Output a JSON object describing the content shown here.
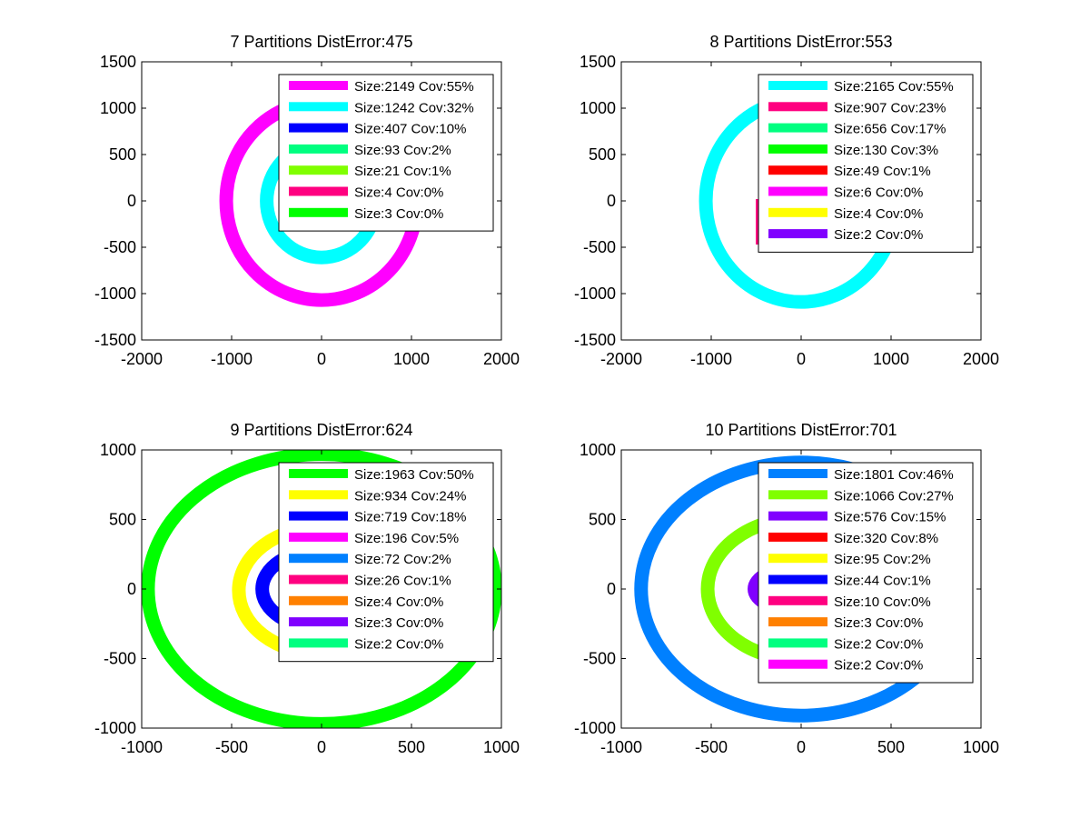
{
  "chart_data": [
    {
      "type": "scatter",
      "title": "7 Partitions DistError:475",
      "xlim": [
        -2000,
        2000
      ],
      "ylim": [
        -1500,
        1500
      ],
      "xticks": [
        "-2000",
        "-1000",
        "0",
        "1000",
        "2000"
      ],
      "yticks": [
        "1500",
        "1000",
        "500",
        "0",
        "-500",
        "-1000",
        "-1500"
      ],
      "grid": false,
      "legend_position": "top-right",
      "series": [
        {
          "name": "Size:2149 Cov:55%",
          "color": "#ff00ff",
          "shape": "ellipse",
          "center": [
            0,
            0
          ],
          "radii": [
            1060,
            1070
          ]
        },
        {
          "name": "Size:1242 Cov:32%",
          "color": "#00ffff",
          "shape": "ellipse",
          "center": [
            0,
            0
          ],
          "radii": [
            610,
            610
          ]
        },
        {
          "name": "Size:407 Cov:10%",
          "color": "#0000ff",
          "shape": "none"
        },
        {
          "name": "Size:93 Cov:2%",
          "color": "#00ff80",
          "shape": "none"
        },
        {
          "name": "Size:21 Cov:1%",
          "color": "#80ff00",
          "shape": "none"
        },
        {
          "name": "Size:4 Cov:0%",
          "color": "#ff0080",
          "shape": "none"
        },
        {
          "name": "Size:3 Cov:0%",
          "color": "#00ff00",
          "shape": "none"
        }
      ]
    },
    {
      "type": "scatter",
      "title": "8 Partitions DistError:553",
      "xlim": [
        -2000,
        2000
      ],
      "ylim": [
        -1500,
        1500
      ],
      "xticks": [
        "-2000",
        "-1000",
        "0",
        "1000",
        "2000"
      ],
      "yticks": [
        "1500",
        "1000",
        "500",
        "0",
        "-500",
        "-1000",
        "-1500"
      ],
      "grid": false,
      "legend_position": "top-right",
      "series": [
        {
          "name": "Size:2165 Cov:55%",
          "color": "#00ffff",
          "shape": "ellipse",
          "center": [
            0,
            0
          ],
          "radii": [
            1060,
            1090
          ]
        },
        {
          "name": "Size:907 Cov:23%",
          "color": "#ff0080",
          "shape": "small",
          "center": [
            0,
            0
          ],
          "radii": [
            50,
            500
          ]
        },
        {
          "name": "Size:656 Cov:17%",
          "color": "#00ff80",
          "shape": "none"
        },
        {
          "name": "Size:130 Cov:3%",
          "color": "#00ff00",
          "shape": "none"
        },
        {
          "name": "Size:49 Cov:1%",
          "color": "#ff0000",
          "shape": "none"
        },
        {
          "name": "Size:6 Cov:0%",
          "color": "#ff00ff",
          "shape": "none"
        },
        {
          "name": "Size:4 Cov:0%",
          "color": "#ffff00",
          "shape": "none"
        },
        {
          "name": "Size:2 Cov:0%",
          "color": "#8000ff",
          "shape": "none"
        }
      ]
    },
    {
      "type": "scatter",
      "title": "9 Partitions DistError:624",
      "xlim": [
        -1000,
        1000
      ],
      "ylim": [
        -1000,
        1000
      ],
      "xticks": [
        "-1000",
        "-500",
        "0",
        "500",
        "1000"
      ],
      "yticks": [
        "1000",
        "500",
        "0",
        "-500",
        "-1000"
      ],
      "grid": false,
      "legend_position": "top-right",
      "series": [
        {
          "name": "Size:1963 Cov:50%",
          "color": "#00ff00",
          "shape": "ellipse",
          "center": [
            0,
            0
          ],
          "radii": [
            965,
            970
          ]
        },
        {
          "name": "Size:934 Cov:24%",
          "color": "#ffff00",
          "shape": "ellipse",
          "center": [
            0,
            -10
          ],
          "radii": [
            460,
            455
          ]
        },
        {
          "name": "Size:719 Cov:18%",
          "color": "#0000ff",
          "shape": "ellipse",
          "center": [
            0,
            0
          ],
          "radii": [
            330,
            280
          ]
        },
        {
          "name": "Size:196 Cov:5%",
          "color": "#ff00ff",
          "shape": "none"
        },
        {
          "name": "Size:72 Cov:2%",
          "color": "#0080ff",
          "shape": "none"
        },
        {
          "name": "Size:26 Cov:1%",
          "color": "#ff0080",
          "shape": "none"
        },
        {
          "name": "Size:4 Cov:0%",
          "color": "#ff8000",
          "shape": "none"
        },
        {
          "name": "Size:3 Cov:0%",
          "color": "#8000ff",
          "shape": "none"
        },
        {
          "name": "Size:2 Cov:0%",
          "color": "#00ff80",
          "shape": "none"
        }
      ]
    },
    {
      "type": "scatter",
      "title": "10 Partitions DistError:701",
      "xlim": [
        -1000,
        1000
      ],
      "ylim": [
        -1000,
        1000
      ],
      "xticks": [
        "-1000",
        "-500",
        "0",
        "500",
        "1000"
      ],
      "yticks": [
        "1000",
        "500",
        "0",
        "-500",
        "-1000"
      ],
      "grid": false,
      "legend_position": "top-right",
      "series": [
        {
          "name": "Size:1801 Cov:46%",
          "color": "#0080ff",
          "shape": "ellipse",
          "center": [
            0,
            0
          ],
          "radii": [
            890,
            910
          ]
        },
        {
          "name": "Size:1066 Cov:27%",
          "color": "#80ff00",
          "shape": "ellipse",
          "center": [
            0,
            0
          ],
          "radii": [
            520,
            510
          ]
        },
        {
          "name": "Size:576 Cov:15%",
          "color": "#8000ff",
          "shape": "ellipse",
          "center": [
            0,
            0
          ],
          "radii": [
            260,
            160
          ]
        },
        {
          "name": "Size:320 Cov:8%",
          "color": "#ff0000",
          "shape": "none"
        },
        {
          "name": "Size:95 Cov:2%",
          "color": "#ffff00",
          "shape": "none"
        },
        {
          "name": "Size:44 Cov:1%",
          "color": "#0000ff",
          "shape": "none"
        },
        {
          "name": "Size:10 Cov:0%",
          "color": "#ff0080",
          "shape": "none"
        },
        {
          "name": "Size:3 Cov:0%",
          "color": "#ff8000",
          "shape": "none"
        },
        {
          "name": "Size:2 Cov:0%",
          "color": "#00ff80",
          "shape": "none"
        },
        {
          "name": "Size:2 Cov:0%",
          "color": "#ff00ff",
          "shape": "none"
        }
      ]
    }
  ]
}
